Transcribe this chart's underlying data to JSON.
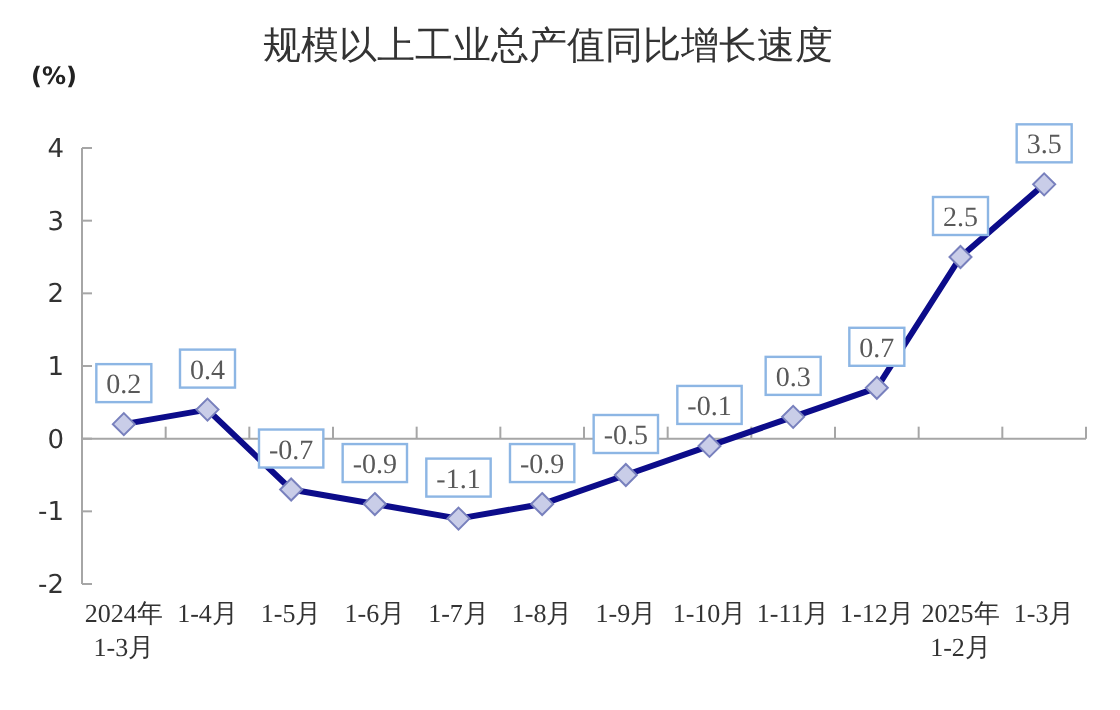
{
  "chart_data": {
    "type": "line",
    "title": "规模以上工业总产值同比增长速度",
    "ylabel": "(%)",
    "categories": [
      "2024年 1-3月",
      "1-4月",
      "1-5月",
      "1-6月",
      "1-7月",
      "1-8月",
      "1-9月",
      "1-10月",
      "1-11月",
      "1-12月",
      "2025年 1-2月",
      "1-3月"
    ],
    "series": [
      {
        "color": "#0c0c8a",
        "values": [
          0.2,
          0.4,
          -0.7,
          -0.9,
          -1.1,
          -0.9,
          -0.5,
          -0.1,
          0.3,
          0.7,
          2.5,
          3.5
        ]
      }
    ],
    "ylim": [
      -2,
      4
    ],
    "yticks": [
      -2,
      -1,
      0,
      1,
      2,
      3,
      4
    ],
    "marker": "diamond",
    "line_style": "solid",
    "data_labels": true
  }
}
